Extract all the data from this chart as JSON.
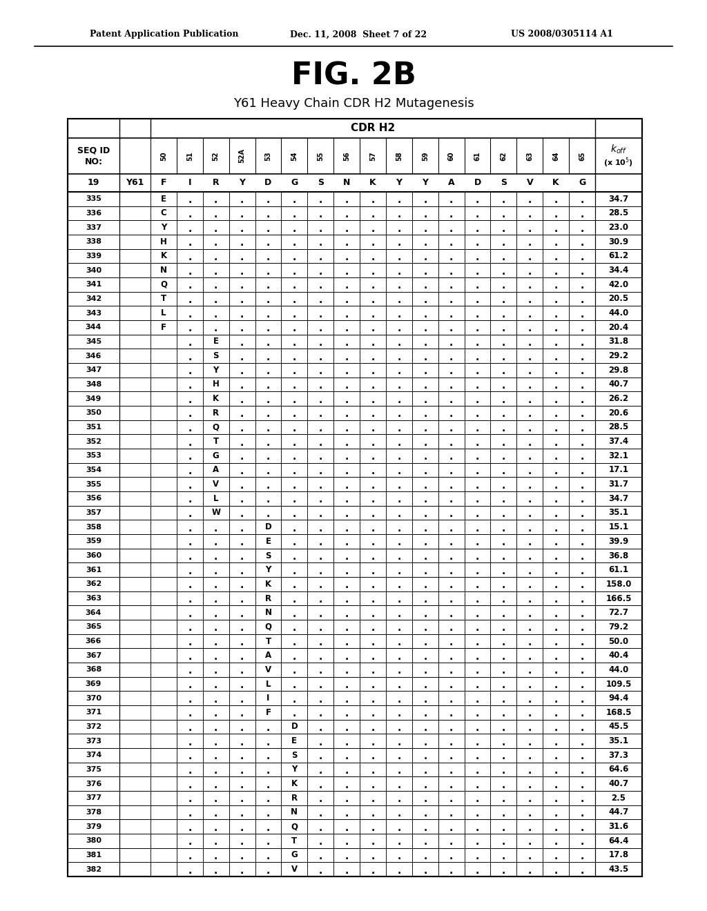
{
  "header_text": "Patent Application Publication",
  "date_text": "Dec. 11, 2008  Sheet 7 of 22",
  "patent_text": "US 2008/0305114 A1",
  "fig_title": "FIG. 2B",
  "subtitle": "Y61 Heavy Chain CDR H2 Mutagenesis",
  "cdr_label": "CDR H2",
  "col_headers": [
    "50",
    "51",
    "52",
    "52A",
    "53",
    "54",
    "55",
    "56",
    "57",
    "58",
    "59",
    "60",
    "61",
    "62",
    "63",
    "64",
    "65"
  ],
  "seq_ref": "Y61",
  "ref_row": [
    "F",
    "I",
    "R",
    "Y",
    "D",
    "G",
    "S",
    "N",
    "K",
    "Y",
    "Y",
    "A",
    "D",
    "S",
    "V",
    "K",
    "G"
  ],
  "rows": [
    {
      "seq": "19",
      "mut_col": -1,
      "aa": "",
      "koff": "",
      "is_ref": true
    },
    {
      "seq": "335",
      "mut_col": 0,
      "aa": "E",
      "koff": "34.7"
    },
    {
      "seq": "336",
      "mut_col": 0,
      "aa": "C",
      "koff": "28.5"
    },
    {
      "seq": "337",
      "mut_col": 0,
      "aa": "Y",
      "koff": "23.0"
    },
    {
      "seq": "338",
      "mut_col": 0,
      "aa": "H",
      "koff": "30.9"
    },
    {
      "seq": "339",
      "mut_col": 0,
      "aa": "K",
      "koff": "61.2"
    },
    {
      "seq": "340",
      "mut_col": 0,
      "aa": "N",
      "koff": "34.4"
    },
    {
      "seq": "341",
      "mut_col": 0,
      "aa": "Q",
      "koff": "42.0"
    },
    {
      "seq": "342",
      "mut_col": 0,
      "aa": "T",
      "koff": "20.5"
    },
    {
      "seq": "343",
      "mut_col": 0,
      "aa": "L",
      "koff": "44.0"
    },
    {
      "seq": "344",
      "mut_col": 0,
      "aa": "F",
      "koff": "20.4"
    },
    {
      "seq": "345",
      "mut_col": 2,
      "aa": "E",
      "koff": "31.8"
    },
    {
      "seq": "346",
      "mut_col": 2,
      "aa": "S",
      "koff": "29.2"
    },
    {
      "seq": "347",
      "mut_col": 2,
      "aa": "Y",
      "koff": "29.8"
    },
    {
      "seq": "348",
      "mut_col": 2,
      "aa": "H",
      "koff": "40.7"
    },
    {
      "seq": "349",
      "mut_col": 2,
      "aa": "K",
      "koff": "26.2"
    },
    {
      "seq": "350",
      "mut_col": 2,
      "aa": "R",
      "koff": "20.6"
    },
    {
      "seq": "351",
      "mut_col": 2,
      "aa": "Q",
      "koff": "28.5"
    },
    {
      "seq": "352",
      "mut_col": 2,
      "aa": "T",
      "koff": "37.4"
    },
    {
      "seq": "353",
      "mut_col": 2,
      "aa": "G",
      "koff": "32.1"
    },
    {
      "seq": "354",
      "mut_col": 2,
      "aa": "A",
      "koff": "17.1"
    },
    {
      "seq": "355",
      "mut_col": 2,
      "aa": "V",
      "koff": "31.7"
    },
    {
      "seq": "356",
      "mut_col": 2,
      "aa": "L",
      "koff": "34.7"
    },
    {
      "seq": "357",
      "mut_col": 2,
      "aa": "W",
      "koff": "35.1"
    },
    {
      "seq": "358",
      "mut_col": 4,
      "aa": "D",
      "koff": "15.1"
    },
    {
      "seq": "359",
      "mut_col": 4,
      "aa": "E",
      "koff": "39.9"
    },
    {
      "seq": "360",
      "mut_col": 4,
      "aa": "S",
      "koff": "36.8"
    },
    {
      "seq": "361",
      "mut_col": 4,
      "aa": "Y",
      "koff": "61.1"
    },
    {
      "seq": "362",
      "mut_col": 4,
      "aa": "K",
      "koff": "158.0"
    },
    {
      "seq": "363",
      "mut_col": 4,
      "aa": "R",
      "koff": "166.5"
    },
    {
      "seq": "364",
      "mut_col": 4,
      "aa": "N",
      "koff": "72.7"
    },
    {
      "seq": "365",
      "mut_col": 4,
      "aa": "Q",
      "koff": "79.2"
    },
    {
      "seq": "366",
      "mut_col": 4,
      "aa": "T",
      "koff": "50.0"
    },
    {
      "seq": "367",
      "mut_col": 4,
      "aa": "A",
      "koff": "40.4"
    },
    {
      "seq": "368",
      "mut_col": 4,
      "aa": "V",
      "koff": "44.0"
    },
    {
      "seq": "369",
      "mut_col": 4,
      "aa": "L",
      "koff": "109.5"
    },
    {
      "seq": "370",
      "mut_col": 4,
      "aa": "I",
      "koff": "94.4"
    },
    {
      "seq": "371",
      "mut_col": 4,
      "aa": "F",
      "koff": "168.5"
    },
    {
      "seq": "372",
      "mut_col": 5,
      "aa": "D",
      "koff": "45.5"
    },
    {
      "seq": "373",
      "mut_col": 5,
      "aa": "E",
      "koff": "35.1"
    },
    {
      "seq": "374",
      "mut_col": 5,
      "aa": "S",
      "koff": "37.3"
    },
    {
      "seq": "375",
      "mut_col": 5,
      "aa": "Y",
      "koff": "64.6"
    },
    {
      "seq": "376",
      "mut_col": 5,
      "aa": "K",
      "koff": "40.7"
    },
    {
      "seq": "377",
      "mut_col": 5,
      "aa": "R",
      "koff": "2.5"
    },
    {
      "seq": "378",
      "mut_col": 5,
      "aa": "N",
      "koff": "44.7"
    },
    {
      "seq": "379",
      "mut_col": 5,
      "aa": "Q",
      "koff": "31.6"
    },
    {
      "seq": "380",
      "mut_col": 5,
      "aa": "T",
      "koff": "64.4"
    },
    {
      "seq": "381",
      "mut_col": 5,
      "aa": "G",
      "koff": "17.8"
    },
    {
      "seq": "382",
      "mut_col": 5,
      "aa": "V",
      "koff": "43.5"
    }
  ],
  "dot_pattern": {
    "0": [
      1,
      1,
      1,
      1,
      1,
      1,
      1,
      1,
      1,
      1,
      1,
      1,
      1,
      1,
      1,
      1
    ],
    "2": [
      0,
      1,
      0,
      1,
      1,
      1,
      1,
      1,
      1,
      1,
      1,
      1,
      1,
      1,
      1,
      1
    ],
    "4": [
      0,
      1,
      0,
      1,
      0,
      1,
      1,
      1,
      1,
      1,
      1,
      1,
      1,
      1,
      1,
      1
    ],
    "5": [
      0,
      1,
      0,
      1,
      0,
      0,
      1,
      1,
      1,
      1,
      1,
      1,
      1,
      1,
      1,
      1
    ]
  }
}
